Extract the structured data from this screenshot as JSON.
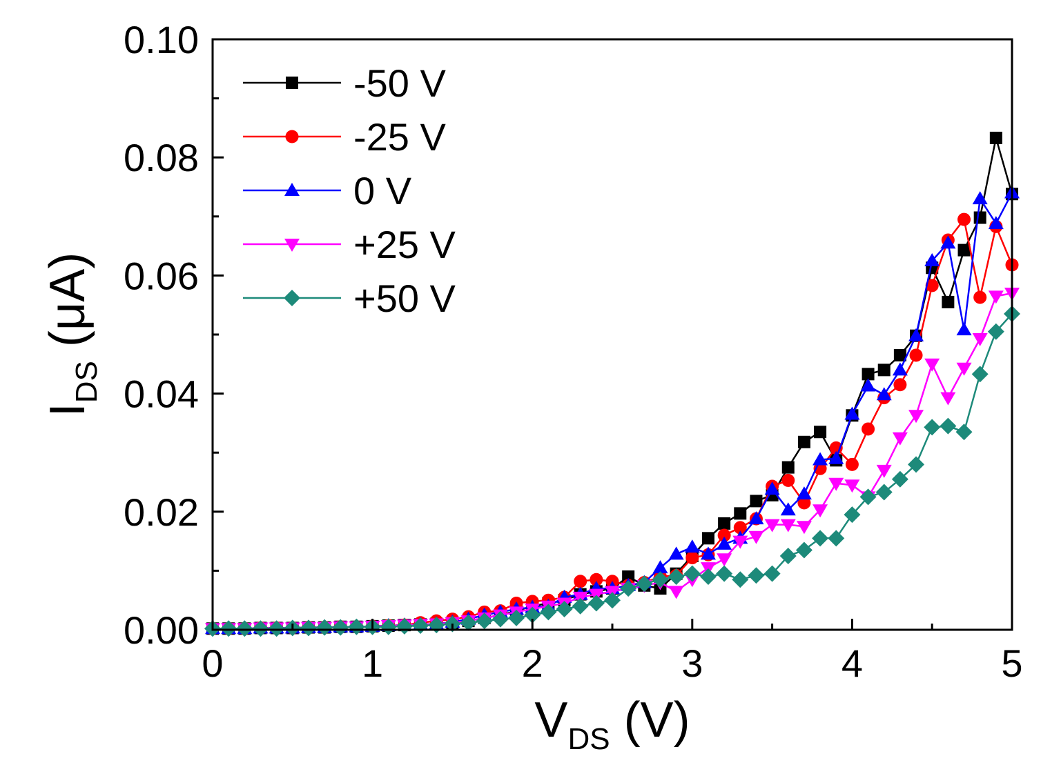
{
  "chart_data": {
    "type": "line",
    "title": "",
    "xlabel": {
      "main": "V",
      "sub": "DS",
      "unit": " (V)"
    },
    "ylabel": {
      "main": "I",
      "sub": "DS",
      "unit": " (μA)"
    },
    "xlim": [
      0,
      5
    ],
    "ylim": [
      0,
      0.1
    ],
    "xticks": [
      0,
      1,
      2,
      3,
      4,
      5
    ],
    "xtick_labels": [
      "0",
      "1",
      "2",
      "3",
      "4",
      "5"
    ],
    "yticks": [
      0,
      0.02,
      0.04,
      0.06,
      0.08,
      0.1
    ],
    "ytick_labels": [
      "0.00",
      "0.02",
      "0.04",
      "0.06",
      "0.08",
      "0.10"
    ],
    "grid": false,
    "legend_position": "top-left",
    "x": [
      0,
      0.1,
      0.2,
      0.3,
      0.4,
      0.5,
      0.6,
      0.7,
      0.8,
      0.9,
      1.0,
      1.1,
      1.2,
      1.3,
      1.4,
      1.5,
      1.6,
      1.7,
      1.8,
      1.9,
      2.0,
      2.1,
      2.2,
      2.3,
      2.4,
      2.5,
      2.6,
      2.7,
      2.8,
      2.9,
      3.0,
      3.1,
      3.2,
      3.3,
      3.4,
      3.5,
      3.6,
      3.7,
      3.8,
      3.9,
      4.0,
      4.1,
      4.2,
      4.3,
      4.4,
      4.5,
      4.6,
      4.7,
      4.8,
      4.9,
      5.0
    ],
    "series": [
      {
        "name": "-50 V",
        "color": "#000000",
        "marker": "square",
        "values": [
          0.0002,
          0.0002,
          0.0002,
          0.0003,
          0.0003,
          0.0003,
          0.0004,
          0.0004,
          0.0005,
          0.0005,
          0.0006,
          0.0007,
          0.0008,
          0.0009,
          0.001,
          0.0012,
          0.0015,
          0.002,
          0.0025,
          0.0032,
          0.004,
          0.0045,
          0.005,
          0.006,
          0.0065,
          0.007,
          0.009,
          0.0075,
          0.007,
          0.0095,
          0.0125,
          0.0155,
          0.018,
          0.0197,
          0.0218,
          0.0228,
          0.0275,
          0.0318,
          0.0335,
          0.0287,
          0.0363,
          0.0433,
          0.044,
          0.0465,
          0.0498,
          0.0613,
          0.0555,
          0.0643,
          0.0698,
          0.0833,
          0.0738
        ]
      },
      {
        "name": "-25 V",
        "color": "#ff0000",
        "marker": "circle",
        "values": [
          0.0002,
          0.0002,
          0.0002,
          0.0003,
          0.0003,
          0.0003,
          0.0004,
          0.0004,
          0.0005,
          0.0005,
          0.0006,
          0.0007,
          0.0008,
          0.0012,
          0.0015,
          0.0018,
          0.0022,
          0.003,
          0.0032,
          0.0045,
          0.0048,
          0.005,
          0.0055,
          0.0082,
          0.0085,
          0.0082,
          0.0075,
          0.008,
          0.009,
          0.0092,
          0.0122,
          0.0127,
          0.016,
          0.0173,
          0.0188,
          0.0243,
          0.0253,
          0.0215,
          0.0273,
          0.0308,
          0.028,
          0.034,
          0.0393,
          0.0415,
          0.0465,
          0.0583,
          0.066,
          0.0695,
          0.0563,
          0.0683,
          0.0618
        ]
      },
      {
        "name": "0 V",
        "color": "#0000ff",
        "marker": "triangle-up",
        "values": [
          0.0002,
          0.0002,
          0.0002,
          0.0003,
          0.0003,
          0.0003,
          0.0004,
          0.0004,
          0.0005,
          0.0005,
          0.0006,
          0.0007,
          0.0008,
          0.0009,
          0.001,
          0.0013,
          0.0018,
          0.0025,
          0.003,
          0.0035,
          0.0038,
          0.004,
          0.0055,
          0.006,
          0.007,
          0.007,
          0.0075,
          0.008,
          0.0105,
          0.0128,
          0.014,
          0.0128,
          0.0145,
          0.0155,
          0.0188,
          0.0238,
          0.0203,
          0.023,
          0.0288,
          0.029,
          0.0365,
          0.0413,
          0.0398,
          0.044,
          0.0498,
          0.0625,
          0.0655,
          0.0508,
          0.073,
          0.0688,
          0.074
        ]
      },
      {
        "name": "+25 V",
        "color": "#ff00ff",
        "marker": "triangle-down",
        "values": [
          0.0002,
          0.0002,
          0.0002,
          0.0003,
          0.0003,
          0.0003,
          0.0004,
          0.0004,
          0.0005,
          0.0005,
          0.0006,
          0.0007,
          0.0008,
          0.0009,
          0.001,
          0.0012,
          0.0015,
          0.002,
          0.0025,
          0.003,
          0.0035,
          0.004,
          0.0045,
          0.0055,
          0.006,
          0.0065,
          0.007,
          0.0075,
          0.008,
          0.0065,
          0.0085,
          0.0105,
          0.012,
          0.015,
          0.0158,
          0.0178,
          0.0178,
          0.0175,
          0.0203,
          0.0248,
          0.0245,
          0.0225,
          0.027,
          0.0325,
          0.0363,
          0.045,
          0.0393,
          0.0443,
          0.0493,
          0.0565,
          0.057
        ]
      },
      {
        "name": "+50 V",
        "color": "#1d8a7a",
        "marker": "diamond",
        "values": [
          0.0002,
          0.0002,
          0.0002,
          0.0002,
          0.0002,
          0.0003,
          0.0003,
          0.0004,
          0.0004,
          0.0005,
          0.0005,
          0.0005,
          0.0006,
          0.0007,
          0.0008,
          0.001,
          0.0012,
          0.0015,
          0.0018,
          0.002,
          0.0025,
          0.003,
          0.0035,
          0.004,
          0.0045,
          0.005,
          0.007,
          0.0078,
          0.0085,
          0.009,
          0.0095,
          0.009,
          0.0095,
          0.0085,
          0.0092,
          0.0095,
          0.0125,
          0.0135,
          0.0155,
          0.0155,
          0.0195,
          0.0225,
          0.0233,
          0.0255,
          0.028,
          0.0343,
          0.0345,
          0.0335,
          0.0433,
          0.0505,
          0.0535
        ]
      }
    ]
  }
}
